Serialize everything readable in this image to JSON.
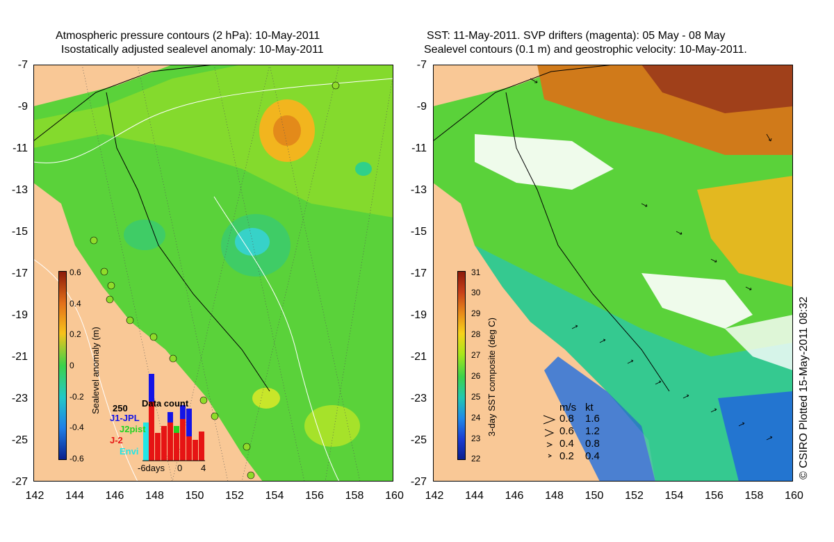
{
  "left_panel": {
    "title_line1": "Atmospheric pressure contours (2 hPa): 10-May-2011",
    "title_line2": "Isostatically adjusted sealevel anomaly: 10-May-2011",
    "colorbar_label": "Sealevel anomaly (m)",
    "colorbar_ticks": [
      "0.6",
      "0.4",
      "0.2",
      "0",
      "-0.2",
      "-0.4",
      "-0.6"
    ],
    "colorbar_colors": [
      "#8b1a0a",
      "#e3701a",
      "#f7c21a",
      "#b8e61a",
      "#3cd24a",
      "#22c8c8",
      "#1f80e8",
      "#0a1e8c"
    ],
    "data_count": {
      "title": "Data count",
      "max_label": "250",
      "series": [
        {
          "name": "J1-JPL",
          "color": "#1414e6"
        },
        {
          "name": "J2pist",
          "color": "#22d422"
        },
        {
          "name": "J-2",
          "color": "#e61414"
        },
        {
          "name": "Envi",
          "color": "#22e6e6"
        }
      ],
      "x_labels": [
        "-6days",
        "0",
        "4"
      ]
    }
  },
  "right_panel": {
    "title_line1": "SST: 11-May-2011. SVP drifters (magenta): 05 May - 08 May",
    "title_line2": "Sealevel contours (0.1 m) and geostrophic velocity: 10-May-2011.",
    "colorbar_label": "3-day SST composite (deg C)",
    "colorbar_ticks": [
      "31",
      "30",
      "29",
      "28",
      "27",
      "26",
      "25",
      "24",
      "23",
      "22"
    ],
    "colorbar_colors": [
      "#8b1a0a",
      "#c8401a",
      "#e88a1a",
      "#f7d21a",
      "#a8e61a",
      "#3cd24a",
      "#22c8b0",
      "#1f8ae8",
      "#1a3cd2",
      "#0a1e8c"
    ],
    "velocity_legend": {
      "header_ms": "m/s",
      "header_kt": "kt",
      "rows": [
        {
          "ms": "0.8",
          "kt": "1.6"
        },
        {
          "ms": "0.6",
          "kt": "1.2"
        },
        {
          "ms": "0.4",
          "kt": "0.8"
        },
        {
          "ms": "0.2",
          "kt": "0.4"
        }
      ]
    }
  },
  "axes": {
    "y_labels": [
      "-7",
      "-9",
      "-11",
      "-13",
      "-15",
      "-17",
      "-19",
      "-21",
      "-23",
      "-25",
      "-27"
    ],
    "x_labels": [
      "142",
      "144",
      "146",
      "148",
      "150",
      "152",
      "154",
      "156",
      "158",
      "160"
    ]
  },
  "credit": "© CSIRO Plotted 15-May-2011 08:32",
  "colors": {
    "land": "#f9c896",
    "ocean_green": "#5ad23a",
    "cloud": "#ffffff"
  }
}
